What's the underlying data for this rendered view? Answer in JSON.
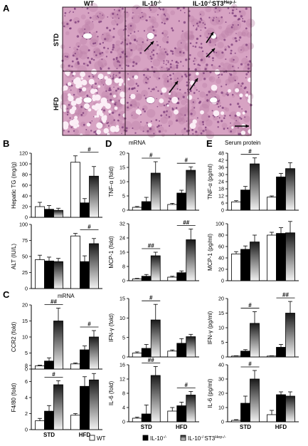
{
  "figure": {
    "panel_letters": [
      "A",
      "B",
      "C",
      "D",
      "E"
    ],
    "histology": {
      "col_headers": [
        "WT",
        "IL-10-/-",
        "IL-10-/-ST3Hep-/-"
      ],
      "col_headers_sup": [
        [
          "",
          ""
        ],
        [
          "IL-10",
          "-/-"
        ],
        [
          "IL-10",
          "-/-",
          "ST3",
          "Hep-/-"
        ]
      ],
      "row_labels": [
        "STD",
        "HFD"
      ],
      "colors": {
        "tissue": "#d7a3c3",
        "tissue_dark": "#b77aa2",
        "nuclei": "#7a3a78",
        "vessel": "#ffffff"
      },
      "arrows_present": true
    },
    "mrna_label_D": "mRNA",
    "mrna_label_C": "mRNA",
    "serum_label": "Serum protein",
    "legend": {
      "items": [
        "WT",
        "IL-10-/-",
        "IL-10-/-ST3Hep-/-"
      ]
    },
    "x_categories": [
      "STD",
      "HFD"
    ],
    "sig_marks": [
      "#",
      "##"
    ]
  },
  "chart_data": [
    {
      "id": "B1",
      "type": "bar",
      "ylabel": "Hepatic TG (mg/g)",
      "ylim": [
        0,
        120
      ],
      "yticks": [
        0,
        20,
        40,
        60,
        80,
        100,
        120
      ],
      "series": [
        {
          "name": "WT",
          "values": [
            20,
            103
          ]
        },
        {
          "name": "IL-10-/-",
          "values": [
            15,
            27
          ]
        },
        {
          "name": "IL-10-/-ST3Hep-/-",
          "values": [
            13,
            77
          ]
        }
      ],
      "errors": [
        [
          8,
          12
        ],
        [
          7,
          8
        ],
        [
          4,
          18
        ]
      ],
      "sig": [
        null,
        "#"
      ]
    },
    {
      "id": "B2",
      "type": "bar",
      "ylabel": "ALT (IU/L)",
      "ylim": [
        0,
        100
      ],
      "yticks": [
        0,
        25,
        50,
        75,
        100
      ],
      "series": [
        {
          "name": "WT",
          "values": [
            45,
            82
          ]
        },
        {
          "name": "IL-10-/-",
          "values": [
            43,
            42
          ]
        },
        {
          "name": "IL-10-/-ST3Hep-/-",
          "values": [
            42,
            70
          ]
        }
      ],
      "errors": [
        [
          7,
          4
        ],
        [
          6,
          9
        ],
        [
          5,
          8
        ]
      ],
      "sig": [
        null,
        "#"
      ]
    },
    {
      "id": "C1",
      "type": "bar",
      "ylabel": "CCR2 (fold)",
      "ylim": [
        0,
        20
      ],
      "yticks": [
        0,
        5,
        10,
        15,
        20
      ],
      "series": [
        {
          "name": "WT",
          "values": [
            1,
            1.6
          ]
        },
        {
          "name": "IL-10-/-",
          "values": [
            2.5,
            6
          ]
        },
        {
          "name": "IL-10-/-ST3Hep-/-",
          "values": [
            15,
            10
          ]
        }
      ],
      "errors": [
        [
          0.2,
          0.3
        ],
        [
          1,
          1.2
        ],
        [
          4,
          2
        ]
      ],
      "sig": [
        "##",
        "#"
      ]
    },
    {
      "id": "C2",
      "type": "bar",
      "ylabel": "F4/80 (fold)",
      "ylim": [
        0,
        8
      ],
      "yticks": [
        0,
        2,
        4,
        6,
        8
      ],
      "series": [
        {
          "name": "WT",
          "values": [
            1.1,
            1.8
          ]
        },
        {
          "name": "IL-10-/-",
          "values": [
            2.3,
            5.4
          ]
        },
        {
          "name": "IL-10-/-ST3Hep-/-",
          "values": [
            5.6,
            6.2
          ]
        }
      ],
      "errors": [
        [
          0.3,
          0.2
        ],
        [
          0.7,
          1.2
        ],
        [
          0.5,
          0.8
        ]
      ],
      "sig": [
        "#",
        null
      ]
    },
    {
      "id": "D1",
      "type": "bar",
      "ylabel": "TNF-α (fold)",
      "ylim": [
        0,
        20
      ],
      "yticks": [
        0,
        5,
        10,
        15,
        20
      ],
      "series": [
        {
          "name": "WT",
          "values": [
            1,
            2
          ]
        },
        {
          "name": "IL-10-/-",
          "values": [
            3,
            6
          ]
        },
        {
          "name": "IL-10-/-ST3Hep-/-",
          "values": [
            13,
            14
          ]
        }
      ],
      "errors": [
        [
          0.3,
          0.4
        ],
        [
          1.5,
          1
        ],
        [
          4,
          1.2
        ]
      ],
      "sig": [
        "#",
        "#"
      ]
    },
    {
      "id": "D2",
      "type": "bar",
      "ylabel": "MCP-1 (fold)",
      "ylim": [
        0,
        32
      ],
      "yticks": [
        0,
        8,
        16,
        24,
        32
      ],
      "series": [
        {
          "name": "WT",
          "values": [
            1,
            2
          ]
        },
        {
          "name": "IL-10-/-",
          "values": [
            2.5,
            4.5
          ]
        },
        {
          "name": "IL-10-/-ST3Hep-/-",
          "values": [
            14,
            23
          ]
        }
      ],
      "errors": [
        [
          0.3,
          0.5
        ],
        [
          1,
          1
        ],
        [
          2,
          6
        ]
      ],
      "sig": [
        "##",
        "##"
      ]
    },
    {
      "id": "D3",
      "type": "bar",
      "ylabel": "IFN-γ (fold)",
      "ylim": [
        0,
        15
      ],
      "yticks": [
        0,
        5,
        10,
        15
      ],
      "series": [
        {
          "name": "WT",
          "values": [
            1,
            1.5
          ]
        },
        {
          "name": "IL-10-/-",
          "values": [
            2.2,
            3.5
          ]
        },
        {
          "name": "IL-10-/-ST3Hep-/-",
          "values": [
            9.5,
            5.2
          ]
        }
      ],
      "errors": [
        [
          0.3,
          0.3
        ],
        [
          1,
          1.2
        ],
        [
          4,
          0.6
        ]
      ],
      "sig": [
        "#",
        null
      ]
    },
    {
      "id": "D4",
      "type": "bar",
      "ylabel": "IL-6 (fold)",
      "ylim": [
        0,
        16
      ],
      "yticks": [
        0,
        4,
        8,
        12,
        16
      ],
      "series": [
        {
          "name": "WT",
          "values": [
            1,
            3
          ]
        },
        {
          "name": "IL-10-/-",
          "values": [
            2.2,
            4.5
          ]
        },
        {
          "name": "IL-10-/-ST3Hep-/-",
          "values": [
            13,
            7.5
          ]
        }
      ],
      "errors": [
        [
          0.3,
          1
        ],
        [
          2.5,
          1
        ],
        [
          2.5,
          1
        ]
      ],
      "sig": [
        "##",
        "#"
      ]
    },
    {
      "id": "E1",
      "type": "bar",
      "ylabel": "TNF-α (pg/ml)",
      "ylim": [
        0,
        48
      ],
      "yticks": [
        0,
        6,
        12,
        18,
        24,
        30,
        36,
        42,
        48
      ],
      "series": [
        {
          "name": "WT",
          "values": [
            7,
            11
          ]
        },
        {
          "name": "IL-10-/-",
          "values": [
            17,
            28
          ]
        },
        {
          "name": "IL-10-/-ST3Hep-/-",
          "values": [
            39,
            35
          ]
        }
      ],
      "errors": [
        [
          1,
          1
        ],
        [
          3,
          3
        ],
        [
          5,
          5
        ]
      ],
      "sig": [
        "#",
        null
      ]
    },
    {
      "id": "E2",
      "type": "bar",
      "ylabel": "MCP-1 (pg/ml)",
      "ylim": [
        0,
        100
      ],
      "yticks": [
        0,
        20,
        40,
        60,
        80,
        100
      ],
      "series": [
        {
          "name": "WT",
          "values": [
            47,
            80
          ]
        },
        {
          "name": "IL-10-/-",
          "values": [
            55,
            83
          ]
        },
        {
          "name": "IL-10-/-ST3Hep-/-",
          "values": [
            68,
            84
          ]
        }
      ],
      "errors": [
        [
          4,
          5
        ],
        [
          6,
          10
        ],
        [
          12,
          20
        ]
      ],
      "sig": [
        null,
        null
      ]
    },
    {
      "id": "E3",
      "type": "bar",
      "ylabel": "IFN-γ (pg/ml)",
      "ylim": [
        0,
        20
      ],
      "yticks": [
        0,
        5,
        10,
        15,
        20
      ],
      "series": [
        {
          "name": "WT",
          "values": [
            0.3,
            0.3
          ]
        },
        {
          "name": "IL-10-/-",
          "values": [
            2,
            3.3
          ]
        },
        {
          "name": "IL-10-/-ST3Hep-/-",
          "values": [
            11.5,
            15
          ]
        }
      ],
      "errors": [
        [
          0.1,
          0.1
        ],
        [
          0.5,
          1
        ],
        [
          4,
          4
        ]
      ],
      "sig": [
        "#",
        "##"
      ]
    },
    {
      "id": "E4",
      "type": "bar",
      "ylabel": "IL-6 (pg/ml)",
      "ylim": [
        0,
        40
      ],
      "yticks": [
        0,
        10,
        20,
        30,
        40
      ],
      "series": [
        {
          "name": "WT",
          "values": [
            1,
            5
          ]
        },
        {
          "name": "IL-10-/-",
          "values": [
            13,
            19
          ]
        },
        {
          "name": "IL-10-/-ST3Hep-/-",
          "values": [
            30,
            18
          ]
        }
      ],
      "errors": [
        [
          0.5,
          3
        ],
        [
          5,
          2
        ],
        [
          6,
          3
        ]
      ],
      "sig": [
        "#",
        null
      ]
    }
  ]
}
